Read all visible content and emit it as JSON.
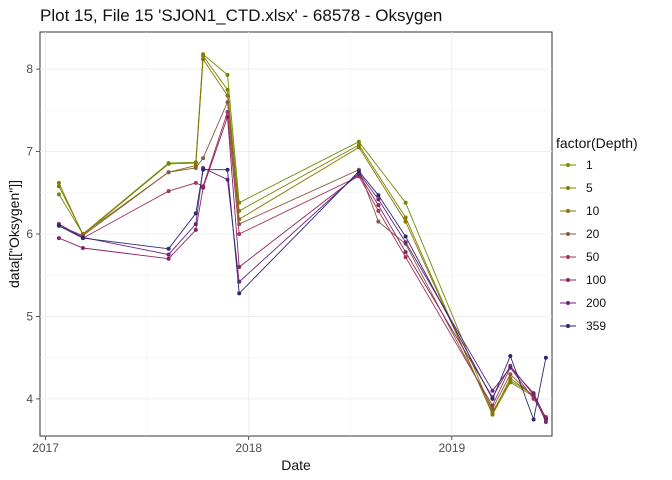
{
  "chart_data": {
    "type": "line",
    "title": "Plot 15, File 15 'SJON1_CTD.xlsx' - 68578  -  Oksygen",
    "xlabel": "Date",
    "ylabel": "data[[\"Oksygen\"]]",
    "x_ticks": [
      "2017",
      "2018",
      "2019"
    ],
    "y_ticks": [
      "4",
      "5",
      "6",
      "7",
      "8"
    ],
    "xlim": [
      "2016-12-22",
      "2019-06-30"
    ],
    "ylim": [
      3.55,
      8.45
    ],
    "grid": true,
    "legend_title": "factor(Depth)",
    "legend_position": "right",
    "series": [
      {
        "name": "1",
        "color": "#6b8e00",
        "x": [
          "2017-01-25",
          "2017-03-09",
          "2017-08-10",
          "2017-09-28",
          "2017-10-11",
          "2017-11-24",
          "2017-12-15",
          "2018-07-18",
          "2018-10-10",
          "2019-03-15",
          "2019-04-16",
          "2019-05-28",
          "2019-06-19"
        ],
        "y": [
          6.48,
          6.0,
          6.86,
          6.87,
          8.18,
          7.93,
          6.38,
          7.12,
          6.38,
          3.84,
          4.22,
          4.05,
          3.75
        ]
      },
      {
        "name": "5",
        "color": "#808000",
        "x": [
          "2017-01-25",
          "2017-03-09",
          "2017-08-10",
          "2017-09-28",
          "2017-10-11",
          "2017-11-24",
          "2017-12-15",
          "2018-07-18",
          "2018-10-10",
          "2019-03-15",
          "2019-04-16",
          "2019-05-28",
          "2019-06-19"
        ],
        "y": [
          6.62,
          5.99,
          6.85,
          6.86,
          8.16,
          7.75,
          6.28,
          7.08,
          6.2,
          3.81,
          4.2,
          4.03,
          3.74
        ]
      },
      {
        "name": "10",
        "color": "#8b7500",
        "x": [
          "2017-01-25",
          "2017-03-09",
          "2017-08-10",
          "2017-09-28",
          "2017-10-11",
          "2017-11-24",
          "2017-12-15",
          "2018-07-18",
          "2018-10-10",
          "2019-03-15",
          "2019-04-16",
          "2019-05-28",
          "2019-06-19"
        ],
        "y": [
          6.58,
          6.0,
          6.75,
          6.83,
          8.12,
          7.68,
          6.18,
          7.05,
          6.15,
          3.82,
          4.25,
          4.04,
          3.76
        ]
      },
      {
        "name": "20",
        "color": "#8b5a3c",
        "x": [
          "2017-01-25",
          "2017-03-09",
          "2017-08-10",
          "2017-09-28",
          "2017-10-11",
          "2017-11-24",
          "2017-12-15",
          "2018-07-18",
          "2018-08-22",
          "2018-10-10",
          "2019-03-15",
          "2019-04-16",
          "2019-05-28",
          "2019-06-19"
        ],
        "y": [
          6.1,
          5.98,
          6.75,
          6.8,
          6.92,
          7.6,
          6.12,
          6.78,
          6.15,
          5.88,
          3.88,
          4.3,
          4.02,
          3.77
        ]
      },
      {
        "name": "50",
        "color": "#a0365a",
        "x": [
          "2017-01-25",
          "2017-03-09",
          "2017-08-10",
          "2017-09-28",
          "2017-10-11",
          "2017-11-24",
          "2017-12-15",
          "2018-07-18",
          "2018-08-22",
          "2018-10-10",
          "2019-03-15",
          "2019-04-16",
          "2019-05-28",
          "2019-06-19"
        ],
        "y": [
          6.12,
          5.95,
          6.52,
          6.62,
          6.58,
          7.48,
          6.0,
          6.7,
          6.28,
          5.72,
          3.92,
          4.38,
          4.0,
          3.78
        ]
      },
      {
        "name": "100",
        "color": "#8b2260",
        "x": [
          "2017-01-25",
          "2017-03-09",
          "2017-08-10",
          "2017-09-28",
          "2017-10-11",
          "2017-11-24",
          "2017-12-15",
          "2018-07-18",
          "2018-08-22",
          "2018-10-10",
          "2019-03-15",
          "2019-04-16",
          "2019-05-28",
          "2019-06-19"
        ],
        "y": [
          5.95,
          5.83,
          5.7,
          6.05,
          6.56,
          7.42,
          5.6,
          6.72,
          6.35,
          5.78,
          4.02,
          4.4,
          4.05,
          3.72
        ]
      },
      {
        "name": "200",
        "color": "#6a2480",
        "x": [
          "2017-01-25",
          "2017-03-09",
          "2017-08-10",
          "2017-09-28",
          "2017-10-11",
          "2017-11-24",
          "2017-12-15",
          "2018-07-18",
          "2018-08-22",
          "2018-10-10",
          "2019-03-15",
          "2019-04-16",
          "2019-05-28",
          "2019-06-19"
        ],
        "y": [
          6.12,
          5.96,
          5.75,
          6.12,
          6.8,
          6.66,
          5.42,
          6.74,
          6.42,
          5.9,
          4.1,
          4.38,
          4.07,
          3.76
        ]
      },
      {
        "name": "359",
        "color": "#2a2a6e",
        "x": [
          "2017-01-25",
          "2017-03-09",
          "2017-08-10",
          "2017-09-28",
          "2017-10-11",
          "2017-11-24",
          "2017-12-15",
          "2018-07-18",
          "2018-08-22",
          "2018-10-10",
          "2019-03-15",
          "2019-04-16",
          "2019-05-28",
          "2019-06-19"
        ],
        "y": [
          6.1,
          5.95,
          5.82,
          6.25,
          6.78,
          6.78,
          5.28,
          6.76,
          6.47,
          5.97,
          4.0,
          4.52,
          3.75,
          4.5
        ]
      }
    ]
  }
}
